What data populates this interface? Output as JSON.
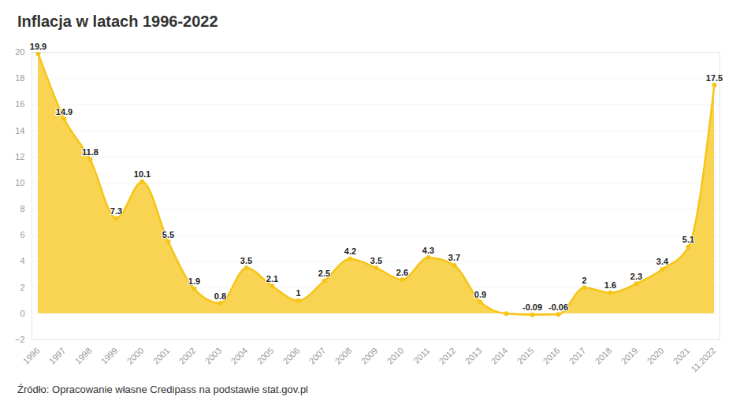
{
  "chart_data": {
    "type": "area",
    "title": "Inflacja w latach 1996-2022",
    "caption": "Źródło: Opracowanie własne Credipass na podstawie stat.gov.pl",
    "categories": [
      "1996",
      "1997",
      "1998",
      "1999",
      "2000",
      "2001",
      "2002",
      "2003",
      "2004",
      "2005",
      "2006",
      "2007",
      "2008",
      "2009",
      "2010",
      "2011",
      "2012",
      "2013",
      "2014",
      "2015",
      "2016",
      "2017",
      "2018",
      "2019",
      "2020",
      "2021",
      "11.2022"
    ],
    "values": [
      19.9,
      14.9,
      11.8,
      7.3,
      10.1,
      5.5,
      1.9,
      0.8,
      3.5,
      2.1,
      1,
      2.5,
      4.2,
      3.5,
      2.6,
      4.3,
      3.7,
      0.9,
      0,
      -0.09,
      -0.06,
      2,
      1.6,
      2.3,
      3.4,
      5.1,
      17.5
    ],
    "value_labels": [
      "19.9",
      "14.9",
      "11.8",
      "7.3",
      "10.1",
      "5.5",
      "1.9",
      "0.8",
      "3.5",
      "2.1",
      "1",
      "2.5",
      "4.2",
      "3.5",
      "2.6",
      "4.3",
      "3.7",
      "0.9",
      null,
      "-0.09",
      "-0.06",
      "2",
      "1.6",
      "2.3",
      "3.4",
      "5.1",
      "17.5"
    ],
    "color": "#f5c518",
    "ylim": [
      -2,
      20
    ],
    "yticks": [
      -2,
      0,
      2,
      4,
      6,
      8,
      10,
      12,
      14,
      16,
      18,
      20
    ],
    "grid": true,
    "data_labels": true
  }
}
